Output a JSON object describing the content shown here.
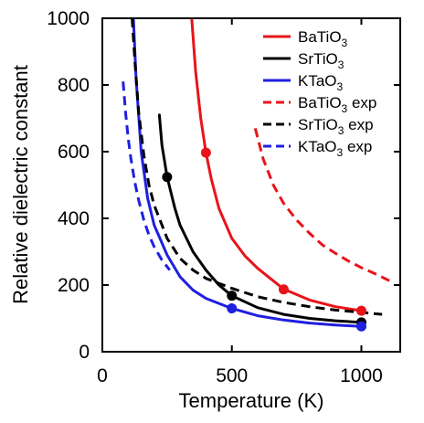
{
  "chart_data": {
    "type": "line",
    "title": "",
    "xlabel": "Temperature (K)",
    "ylabel": "Relative dielectric constant",
    "xlim": [
      0,
      1150
    ],
    "ylim": [
      0,
      1000
    ],
    "xticks": [
      0,
      500,
      1000
    ],
    "yticks": [
      0,
      200,
      400,
      600,
      800,
      1000
    ],
    "grid": false,
    "legend_position": "top-right",
    "series": [
      {
        "name": "BaTiO3",
        "name_base": "BaTiO",
        "name_sub": "3",
        "style": "solid",
        "color": "#e8141a",
        "x": [
          345,
          360,
          380,
          400,
          420,
          450,
          500,
          550,
          600,
          700,
          800,
          900,
          1000
        ],
        "y": [
          1000,
          840,
          700,
          597,
          520,
          430,
          340,
          288,
          250,
          188,
          155,
          135,
          123
        ],
        "markers": {
          "x": [
            400,
            700,
            1000
          ],
          "y": [
            597,
            187,
            123
          ]
        }
      },
      {
        "name": "SrTiO3",
        "name_base": "SrTiO",
        "name_sub": "3",
        "style": "solid",
        "color": "#000000",
        "x": [
          220,
          230,
          250,
          280,
          300,
          350,
          400,
          450,
          500,
          600,
          700,
          800,
          900,
          1000
        ],
        "y": [
          710,
          620,
          524,
          430,
          380,
          300,
          245,
          200,
          168,
          132,
          112,
          100,
          93,
          88
        ],
        "markers": {
          "x": [
            250,
            500,
            1000
          ],
          "y": [
            524,
            168,
            88
          ]
        }
      },
      {
        "name": "KTaO3",
        "name_base": "KTaO",
        "name_sub": "3",
        "style": "solid",
        "color": "#1f1fe0",
        "x": [
          120,
          130,
          150,
          175,
          200,
          250,
          300,
          350,
          400,
          500,
          600,
          700,
          800,
          900,
          1000
        ],
        "y": [
          1000,
          820,
          600,
          460,
          380,
          290,
          225,
          185,
          160,
          130,
          108,
          95,
          86,
          80,
          76
        ],
        "markers": {
          "x": [
            500,
            1000
          ],
          "y": [
            130,
            76
          ]
        }
      },
      {
        "name": "BaTiO3 exp",
        "name_base": "BaTiO",
        "name_sub": "3",
        "name_suffix": " exp",
        "style": "dashed",
        "color": "#e8141a",
        "x": [
          590,
          620,
          660,
          700,
          750,
          800,
          850,
          900,
          950,
          1000,
          1050,
          1110
        ],
        "y": [
          670,
          580,
          500,
          445,
          395,
          355,
          320,
          295,
          272,
          252,
          235,
          212
        ]
      },
      {
        "name": "SrTiO3 exp",
        "name_base": "SrTiO",
        "name_sub": "3",
        "name_suffix": " exp",
        "style": "dashed",
        "color": "#000000",
        "x": [
          115,
          125,
          140,
          160,
          180,
          200,
          250,
          300,
          350,
          400,
          500,
          600,
          700,
          800,
          900,
          1000,
          1080
        ],
        "y": [
          1000,
          880,
          720,
          590,
          500,
          440,
          340,
          280,
          245,
          220,
          190,
          165,
          148,
          135,
          125,
          118,
          112
        ]
      },
      {
        "name": "KTaO3 exp",
        "name_base": "KTaO",
        "name_sub": "3",
        "name_suffix": " exp",
        "style": "dashed",
        "color": "#1f1fe0",
        "x": [
          80,
          90,
          100,
          110,
          125,
          140,
          160,
          180,
          200,
          230,
          260
        ],
        "y": [
          810,
          715,
          640,
          580,
          510,
          455,
          395,
          350,
          315,
          275,
          245
        ]
      }
    ]
  }
}
